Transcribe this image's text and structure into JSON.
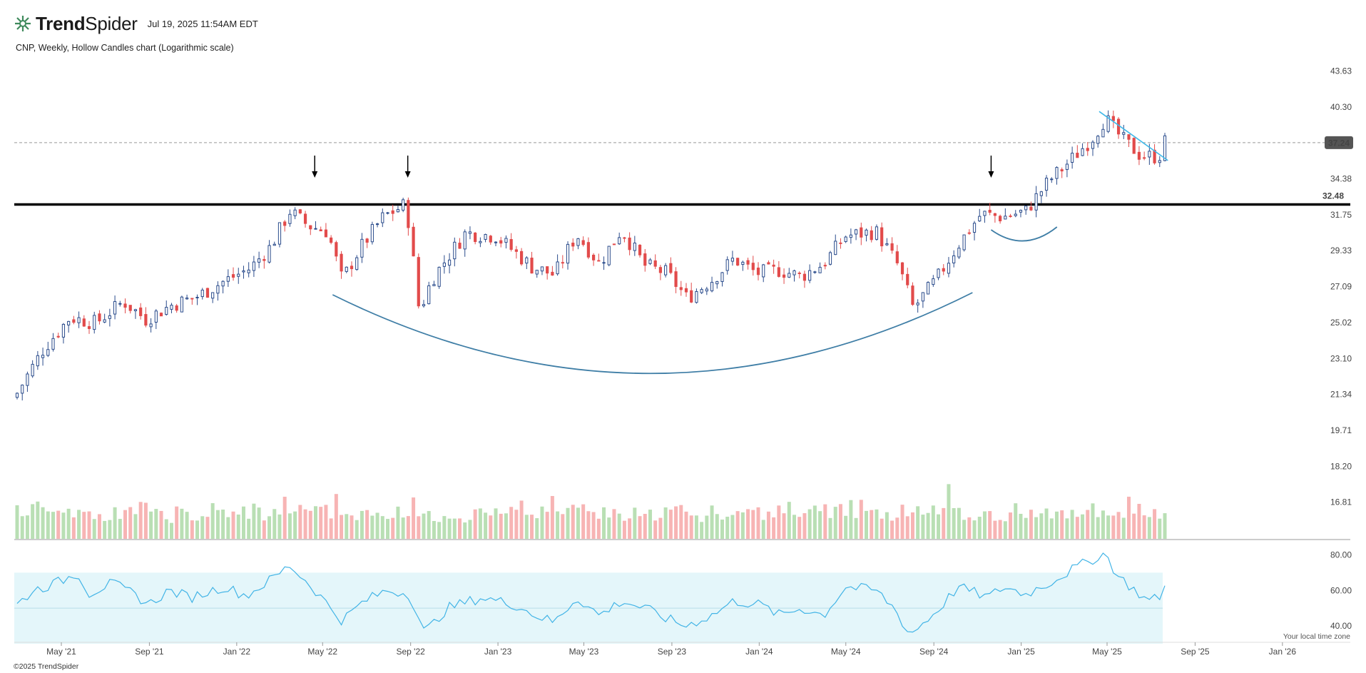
{
  "header": {
    "brand_bold": "Trend",
    "brand_light": "Spider",
    "timestamp": "Jul 19, 2025 11:54AM EDT",
    "subtitle": "CNP, Weekly, Hollow Candles chart (Logarithmic scale)"
  },
  "footer": {
    "copyright": "©2025 TrendSpider",
    "timezone_note": "Your local time zone"
  },
  "colors": {
    "up_candle": "#2b4c8c",
    "down_candle": "#e24b4b",
    "volume_up": "#b9dfb4",
    "volume_down": "#f7b4b4",
    "rsi_line": "#42b4e6",
    "rsi_band": "#e4f6fa",
    "curve": "#3f7ea6",
    "trendline": "#3eb8e8",
    "support_line": "#000000",
    "price_tag_bg": "#555555"
  },
  "chart_data": [
    {
      "type": "candlestick",
      "symbol": "CNP",
      "interval": "Weekly",
      "scale": "log",
      "x_ticks": [
        "May '21",
        "Sep '21",
        "Jan '22",
        "May '22",
        "Sep '22",
        "Jan '23",
        "May '23",
        "Sep '23",
        "Jan '24",
        "May '24",
        "Sep '24",
        "Jan '25",
        "May '25",
        "Sep '25",
        "Jan '26"
      ],
      "y_ticks": [
        "43.63",
        "40.30",
        "37.24",
        "34.38",
        "31.75",
        "29.33",
        "27.09",
        "25.02",
        "23.10",
        "21.34",
        "19.71",
        "18.20",
        "16.81"
      ],
      "current_price": "37.24",
      "support_level": "32.48",
      "ylim": [
        16.0,
        45.0
      ],
      "price_path": [
        [
          "2021-04-09",
          21.4
        ],
        [
          "2021-05-15",
          23.6
        ],
        [
          "2021-06-20",
          25.3
        ],
        [
          "2021-07-25",
          25.0
        ],
        [
          "2021-09-01",
          26.2
        ],
        [
          "2021-10-01",
          25.2
        ],
        [
          "2021-11-05",
          26.0
        ],
        [
          "2021-12-10",
          26.5
        ],
        [
          "2022-01-15",
          27.4
        ],
        [
          "2022-02-20",
          28.2
        ],
        [
          "2022-03-20",
          29.6
        ],
        [
          "2022-04-15",
          32.0
        ],
        [
          "2022-05-10",
          31.0
        ],
        [
          "2022-06-05",
          30.6
        ],
        [
          "2022-06-25",
          27.5
        ],
        [
          "2022-07-20",
          29.5
        ],
        [
          "2022-08-20",
          31.6
        ],
        [
          "2022-09-20",
          32.5
        ],
        [
          "2022-10-08",
          25.6
        ],
        [
          "2022-10-25",
          27.5
        ],
        [
          "2022-12-10",
          30.5
        ],
        [
          "2023-01-20",
          30.3
        ],
        [
          "2023-03-10",
          28.3
        ],
        [
          "2023-04-10",
          27.8
        ],
        [
          "2023-05-10",
          30.4
        ],
        [
          "2023-06-10",
          28.5
        ],
        [
          "2023-07-10",
          30.7
        ],
        [
          "2023-08-10",
          28.4
        ],
        [
          "2023-09-10",
          27.9
        ],
        [
          "2023-10-07",
          26.4
        ],
        [
          "2023-11-10",
          27.5
        ],
        [
          "2023-12-10",
          28.8
        ],
        [
          "2024-01-10",
          27.9
        ],
        [
          "2024-02-10",
          28.1
        ],
        [
          "2024-03-10",
          27.7
        ],
        [
          "2024-04-10",
          28.5
        ],
        [
          "2024-05-10",
          30.3
        ],
        [
          "2024-06-20",
          30.6
        ],
        [
          "2024-07-20",
          28.4
        ],
        [
          "2024-08-10",
          25.8
        ],
        [
          "2024-09-10",
          27.5
        ],
        [
          "2024-10-10",
          29.7
        ],
        [
          "2024-11-10",
          31.8
        ],
        [
          "2024-12-10",
          31.6
        ],
        [
          "2025-01-10",
          32.0
        ],
        [
          "2025-02-10",
          34.2
        ],
        [
          "2025-03-10",
          35.7
        ],
        [
          "2025-04-10",
          37.6
        ],
        [
          "2025-04-28",
          39.3
        ],
        [
          "2025-05-20",
          37.6
        ],
        [
          "2025-06-15",
          36.2
        ],
        [
          "2025-07-10",
          36.1
        ],
        [
          "2025-07-18",
          37.3
        ]
      ],
      "annotations": {
        "arrows": [
          "2022-04-20",
          "2022-08-28",
          "2024-11-20"
        ],
        "rounded_bottom": [
          "2022-05-15",
          "2024-10-25"
        ],
        "small_cup": [
          "2024-11-20",
          "2025-02-20"
        ],
        "trendline": {
          "from": [
            "2025-04-20",
            39.9
          ],
          "to": [
            "2025-07-25",
            35.8
          ]
        }
      }
    },
    {
      "type": "bar",
      "name": "Volume",
      "y_ticks": [],
      "values_relative": [
        0.7,
        0.6,
        0.45,
        0.6,
        0.62,
        0.55,
        0.7,
        0.55,
        0.68,
        0.5,
        0.75,
        0.55,
        0.5,
        0.62,
        0.45,
        0.48,
        0.55,
        0.42,
        0.5,
        0.58,
        0.45,
        0.5,
        0.55,
        0.48,
        0.6,
        0.9,
        0.55,
        0.5,
        0.45,
        0.4,
        0.42,
        0.55,
        0.5,
        0.48,
        0.45,
        0.42,
        0.45,
        0.5,
        0.6,
        0.52,
        0.55,
        0.5,
        0.48,
        0.45,
        0.58,
        0.5,
        0.62,
        0.55,
        0.45,
        0.48,
        0.52,
        0.55
      ]
    },
    {
      "type": "line",
      "name": "RSI",
      "y_ticks": [
        "80.00",
        "60.00",
        "40.00"
      ],
      "ylim": [
        34,
        83
      ],
      "band": [
        30,
        70
      ],
      "path": [
        [
          "2021-04-09",
          52
        ],
        [
          "2021-05-01",
          60
        ],
        [
          "2021-06-01",
          64
        ],
        [
          "2021-07-01",
          70
        ],
        [
          "2021-07-15",
          58
        ],
        [
          "2021-08-15",
          64
        ],
        [
          "2021-09-15",
          58
        ],
        [
          "2021-10-05",
          52
        ],
        [
          "2021-11-01",
          60
        ],
        [
          "2021-12-01",
          56
        ],
        [
          "2022-01-15",
          62
        ],
        [
          "2022-02-15",
          57
        ],
        [
          "2022-03-20",
          66
        ],
        [
          "2022-04-15",
          74
        ],
        [
          "2022-05-15",
          62
        ],
        [
          "2022-06-25",
          43
        ],
        [
          "2022-07-25",
          54
        ],
        [
          "2022-08-25",
          60
        ],
        [
          "2022-09-25",
          58
        ],
        [
          "2022-10-15",
          36
        ],
        [
          "2022-11-15",
          50
        ],
        [
          "2023-01-01",
          56
        ],
        [
          "2023-02-15",
          52
        ],
        [
          "2023-03-15",
          46
        ],
        [
          "2023-04-10",
          42
        ],
        [
          "2023-05-10",
          56
        ],
        [
          "2023-06-10",
          46
        ],
        [
          "2023-07-10",
          54
        ],
        [
          "2023-08-10",
          50
        ],
        [
          "2023-09-10",
          44
        ],
        [
          "2023-10-05",
          40
        ],
        [
          "2023-11-10",
          46
        ],
        [
          "2023-12-10",
          54
        ],
        [
          "2024-01-15",
          52
        ],
        [
          "2024-02-10",
          46
        ],
        [
          "2024-03-10",
          50
        ],
        [
          "2024-04-10",
          46
        ],
        [
          "2024-05-10",
          62
        ],
        [
          "2024-06-20",
          60
        ],
        [
          "2024-07-15",
          50
        ],
        [
          "2024-08-05",
          35
        ],
        [
          "2024-09-10",
          48
        ],
        [
          "2024-10-10",
          62
        ],
        [
          "2024-11-20",
          56
        ],
        [
          "2024-12-10",
          62
        ],
        [
          "2025-01-10",
          58
        ],
        [
          "2025-02-10",
          64
        ],
        [
          "2025-03-15",
          72
        ],
        [
          "2025-04-28",
          81
        ],
        [
          "2025-05-15",
          68
        ],
        [
          "2025-06-25",
          54
        ],
        [
          "2025-07-10",
          56
        ],
        [
          "2025-07-18",
          62
        ]
      ]
    }
  ]
}
